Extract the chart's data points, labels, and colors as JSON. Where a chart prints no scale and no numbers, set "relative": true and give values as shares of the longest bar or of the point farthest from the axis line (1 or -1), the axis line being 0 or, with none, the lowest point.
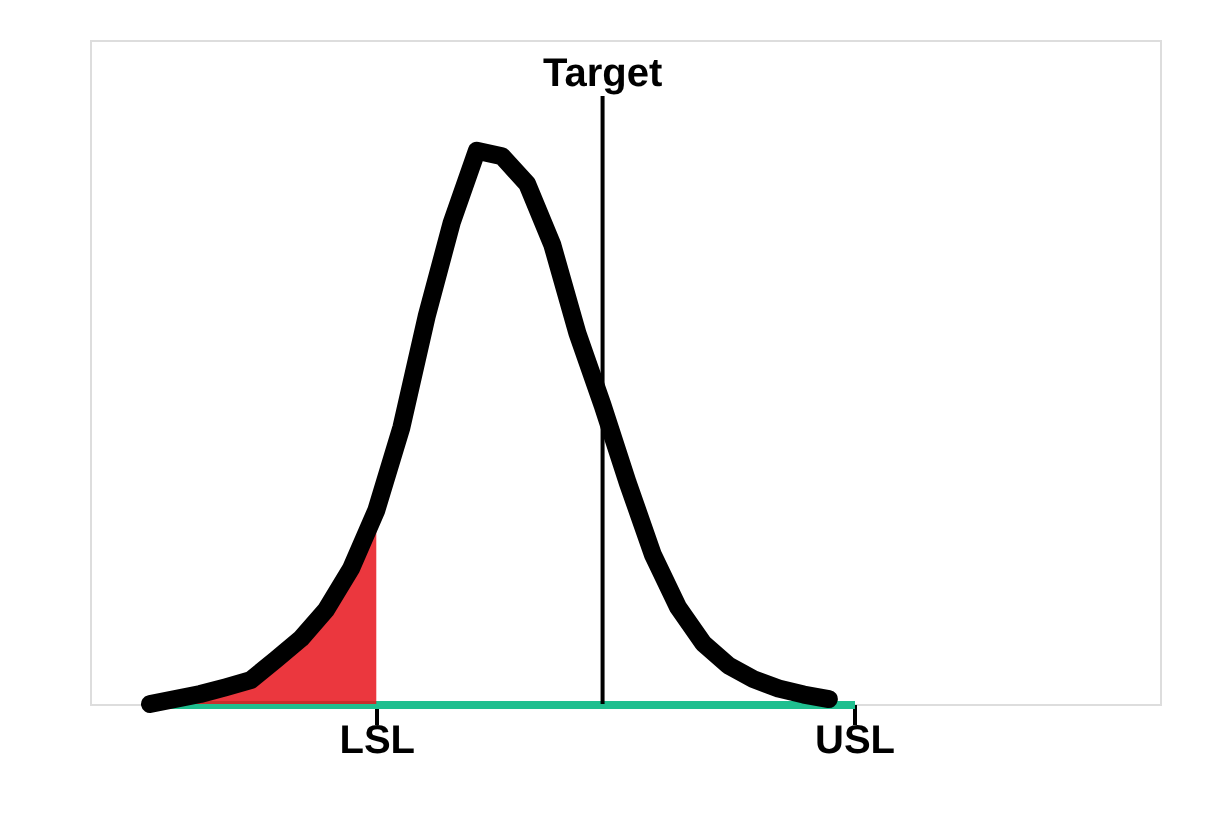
{
  "chart_data": {
    "type": "line",
    "relative": true,
    "tick_labels": "x",
    "grid": false,
    "categories": [
      null,
      null,
      null,
      null,
      null,
      null,
      null,
      null,
      null,
      "LSL",
      null,
      null,
      null,
      null,
      null,
      null,
      null,
      null,
      "Target",
      null,
      null,
      null,
      null,
      null,
      null,
      null,
      null,
      null,
      "USL"
    ],
    "series": [
      {
        "color": "#000000",
        "values": [
          0,
          0.009,
          0.018,
          0.03,
          0.043,
          0.08,
          0.118,
          0.17,
          0.245,
          0.35,
          0.5,
          0.7,
          0.87,
          1,
          0.99,
          0.94,
          0.83,
          0.67,
          0.54,
          0.4,
          0.27,
          0.175,
          0.11,
          0.07,
          0.045,
          0.028,
          0.017,
          0.009,
          null
        ]
      },
      {
        "type": "area",
        "color": "#e8141c",
        "values": [
          0,
          0.009,
          0.018,
          0.03,
          0.043,
          0.08,
          0.118,
          0.17,
          0.245,
          0.35,
          null,
          null,
          null,
          null,
          null,
          null,
          null,
          null,
          null,
          null,
          null,
          null,
          null,
          null,
          null,
          null,
          null,
          null,
          null
        ]
      }
    ],
    "ref_lines": [
      {
        "axis": "x",
        "value": "Target",
        "color": "#000000"
      }
    ]
  }
}
